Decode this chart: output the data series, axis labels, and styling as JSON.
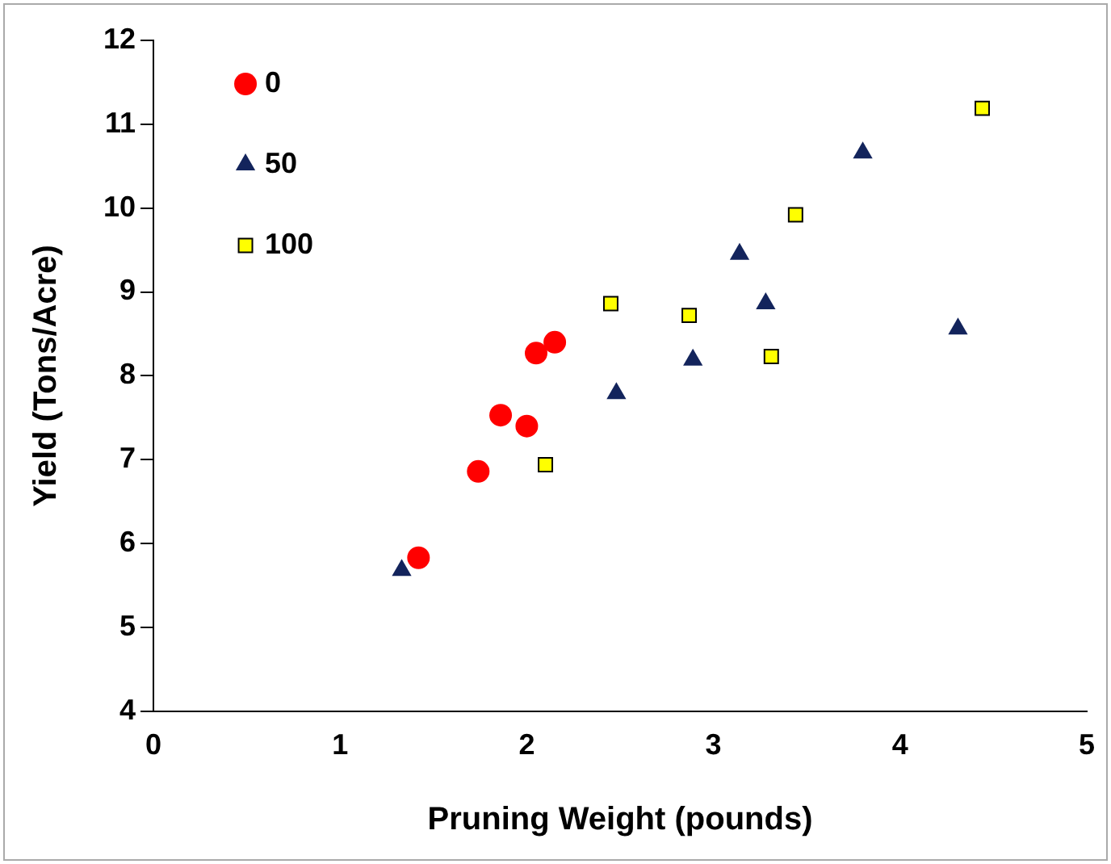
{
  "chart_data": {
    "type": "scatter",
    "xlabel": "Pruning Weight (pounds)",
    "ylabel": "Yield (Tons/Acre)",
    "xlim": [
      0,
      5
    ],
    "xticks": [
      0,
      1,
      2,
      3,
      4,
      5
    ],
    "ylim": [
      4,
      12
    ],
    "yticks": [
      4,
      5,
      6,
      7,
      8,
      9,
      10,
      11,
      12
    ],
    "grid": false,
    "legend": "top left",
    "series": [
      {
        "name": "0",
        "color": "#ff0000",
        "marker": "circle",
        "x": [
          1.42,
          1.74,
          1.86,
          2.0,
          2.05,
          2.15
        ],
        "values": [
          5.83,
          6.86,
          7.53,
          7.4,
          8.27,
          8.4
        ]
      },
      {
        "name": "50",
        "color": "#13245c",
        "marker": "triangle",
        "x": [
          1.33,
          2.48,
          2.89,
          3.14,
          3.28,
          3.8,
          4.31
        ],
        "values": [
          5.68,
          7.79,
          8.19,
          9.45,
          8.86,
          10.66,
          8.56
        ]
      },
      {
        "name": "100",
        "color": "#ffff00",
        "marker": "square",
        "x": [
          2.1,
          2.45,
          2.87,
          3.31,
          3.44,
          4.44
        ],
        "values": [
          6.94,
          8.86,
          8.72,
          8.23,
          9.92,
          11.19
        ]
      }
    ]
  }
}
